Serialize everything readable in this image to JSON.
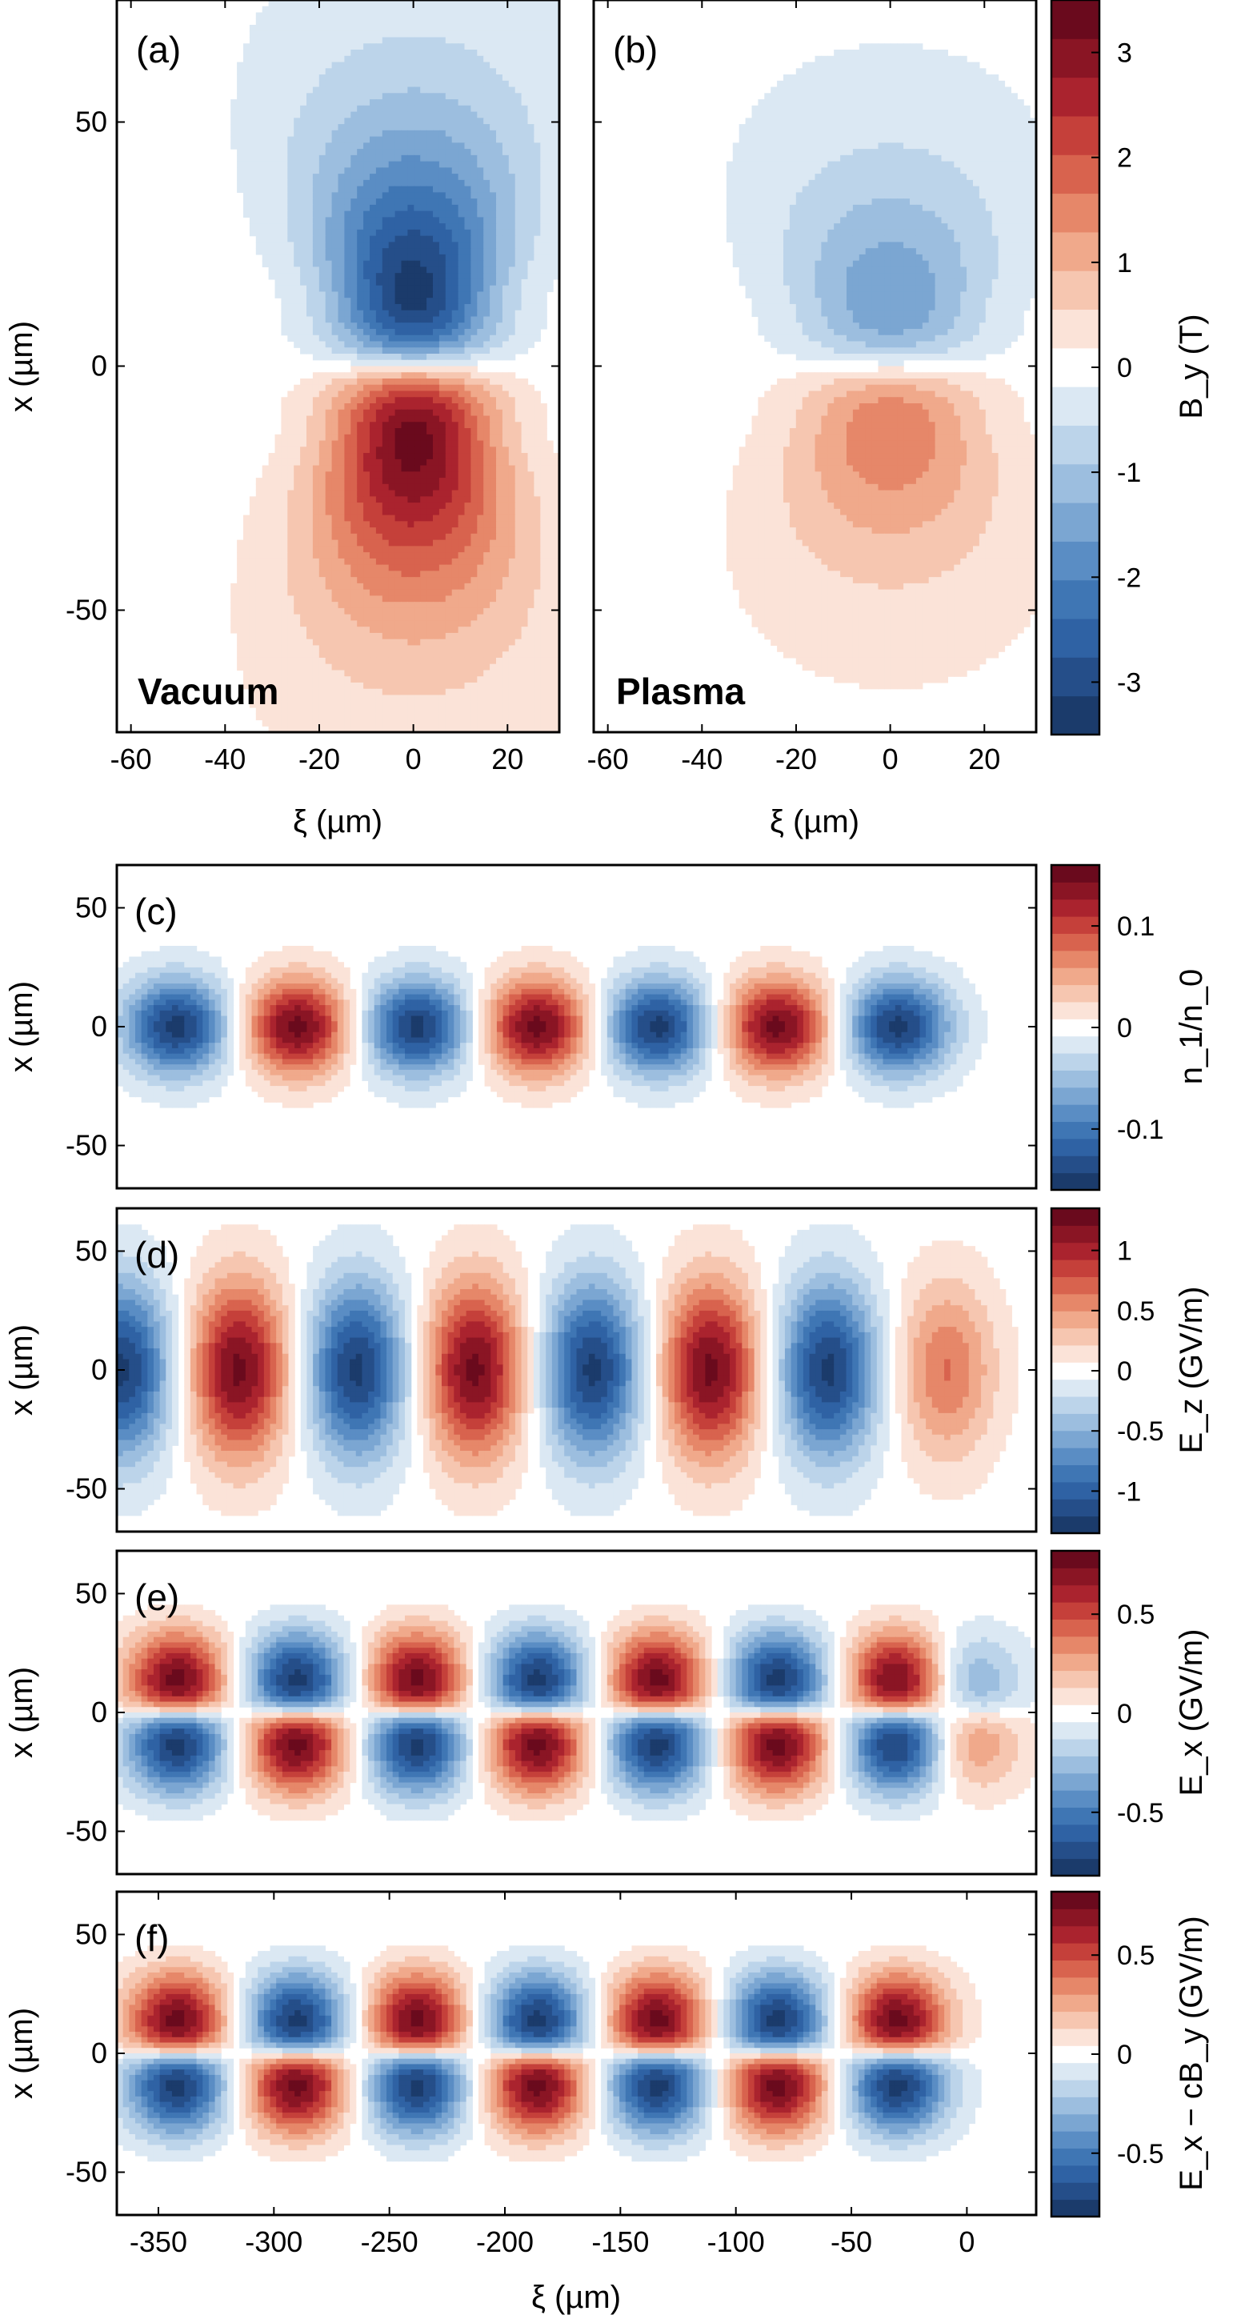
{
  "colors": {
    "scale": [
      "#1b3b6b",
      "#254e89",
      "#2f62a4",
      "#3f76b4",
      "#5a8dc4",
      "#7ba6d2",
      "#9cbedf",
      "#bcd4ea",
      "#dbe8f3",
      "#ffffff",
      "#fbe3d8",
      "#f6c6b0",
      "#f0a98b",
      "#e68769",
      "#d8634e",
      "#c5403a",
      "#aa232e",
      "#8a1524",
      "#6a0a1d"
    ]
  },
  "chart_data": [
    {
      "id": "a",
      "type": "heatmap",
      "panel_label": "(a)",
      "medium_label": "Vacuum",
      "xlabel": "ξ (µm)",
      "ylabel": "x (µm)",
      "xlim": [
        -63,
        31
      ],
      "ylim": [
        -75,
        75
      ],
      "xticks": [
        -60,
        -40,
        -20,
        0,
        20
      ],
      "yticks": [
        50,
        0,
        -50
      ],
      "field": {
        "kind": "lobes",
        "lobes": [
          {
            "xi": 0,
            "amp": 3.3,
            "kx": 12,
            "ky": 28,
            "lr": 0.02,
            "shape": "flare"
          }
        ]
      }
    },
    {
      "id": "b",
      "type": "heatmap",
      "panel_label": "(b)",
      "medium_label": "Plasma",
      "xlabel": "ξ (µm)",
      "ylabel": "",
      "xlim": [
        -63,
        31
      ],
      "ylim": [
        -75,
        75
      ],
      "xticks": [
        -60,
        -40,
        -20,
        0,
        20
      ],
      "yticks": [
        50,
        0,
        -50
      ],
      "field": {
        "kind": "lobes",
        "lobes": [
          {
            "xi": 0,
            "amp": 1.6,
            "kx": 14,
            "ky": 20,
            "lr": 0.02,
            "shape": "teardrop"
          }
        ]
      },
      "colorbar": {
        "label": "B_y (T)",
        "ticks": [
          3,
          2,
          1,
          0,
          -1,
          -2,
          -3
        ],
        "tick_labels": [
          "3",
          "2",
          "1",
          "0",
          "-1",
          "-2",
          "-3"
        ],
        "range": [
          -3.5,
          3.5
        ]
      }
    },
    {
      "id": "c",
      "type": "heatmap",
      "panel_label": "(c)",
      "xlabel": "",
      "ylabel": "x (µm)",
      "xlim": [
        -368,
        30
      ],
      "ylim": [
        -68,
        68
      ],
      "xticks": [],
      "yticks": [
        50,
        0,
        -50
      ],
      "field": {
        "kind": "row",
        "sign": "even",
        "centers": [
          -342,
          -290,
          -238,
          -186,
          -134,
          -82,
          -30
        ],
        "amps": [
          -0.15,
          0.15,
          -0.15,
          0.15,
          -0.15,
          0.15,
          -0.15
        ],
        "kx": 16,
        "ky": 14
      },
      "colorbar": {
        "label": "n_1/n_0",
        "ticks": [
          0.1,
          0,
          -0.1
        ],
        "tick_labels": [
          "0.1",
          "0",
          "-0.1"
        ],
        "range": [
          -0.16,
          0.16
        ]
      }
    },
    {
      "id": "d",
      "type": "heatmap",
      "panel_label": "(d)",
      "xlabel": "",
      "ylabel": "x (µm)",
      "xlim": [
        -368,
        30
      ],
      "ylim": [
        -68,
        68
      ],
      "xticks": [],
      "yticks": [
        50,
        0,
        -50
      ],
      "field": {
        "kind": "row",
        "sign": "even",
        "centers": [
          -366,
          -315,
          -264,
          -213,
          -162,
          -111,
          -60,
          -9
        ],
        "amps": [
          -1.25,
          1.25,
          -1.25,
          1.25,
          -1.25,
          1.25,
          -1.25,
          0.65
        ],
        "kx": 15,
        "ky": 26
      },
      "colorbar": {
        "label": "E_z (GV/m)",
        "ticks": [
          1,
          0.5,
          0,
          -0.5,
          -1
        ],
        "tick_labels": [
          "1",
          "0.5",
          "0",
          "-0.5",
          "-1"
        ],
        "range": [
          -1.35,
          1.35
        ]
      }
    },
    {
      "id": "e",
      "type": "heatmap",
      "panel_label": "(e)",
      "xlabel": "",
      "ylabel": "x (µm)",
      "xlim": [
        -368,
        30
      ],
      "ylim": [
        -68,
        68
      ],
      "xticks": [],
      "yticks": [
        50,
        0,
        -50
      ],
      "field": {
        "kind": "row",
        "sign": "odd",
        "centers": [
          -342,
          -290,
          -238,
          -186,
          -134,
          -82,
          -30,
          2
        ],
        "amps": [
          0.78,
          -0.78,
          0.78,
          -0.78,
          0.78,
          -0.78,
          0.78,
          -0.32
        ],
        "kx": 15,
        "ky": 15
      },
      "colorbar": {
        "label": "E_x (GV/m)",
        "ticks": [
          0.5,
          0,
          -0.5
        ],
        "tick_labels": [
          "0.5",
          "0",
          "-0.5"
        ],
        "range": [
          -0.82,
          0.82
        ]
      }
    },
    {
      "id": "f",
      "type": "heatmap",
      "panel_label": "(f)",
      "xlabel": "ξ (µm)",
      "ylabel": "x (µm)",
      "xlim": [
        -368,
        30
      ],
      "ylim": [
        -68,
        68
      ],
      "xticks": [
        -350,
        -300,
        -250,
        -200,
        -150,
        -100,
        -50,
        0
      ],
      "yticks": [
        50,
        0,
        -50
      ],
      "field": {
        "kind": "row",
        "sign": "odd",
        "centers": [
          -342,
          -290,
          -238,
          -186,
          -134,
          -82,
          -30
        ],
        "amps": [
          0.78,
          -0.78,
          0.78,
          -0.78,
          0.78,
          -0.78,
          0.78
        ],
        "kx": 15,
        "ky": 15
      },
      "colorbar": {
        "label": "E_x − cB_y (GV/m)",
        "ticks": [
          0.5,
          0,
          -0.5
        ],
        "tick_labels": [
          "0.5",
          "0",
          "-0.5"
        ],
        "range": [
          -0.82,
          0.82
        ]
      }
    }
  ]
}
